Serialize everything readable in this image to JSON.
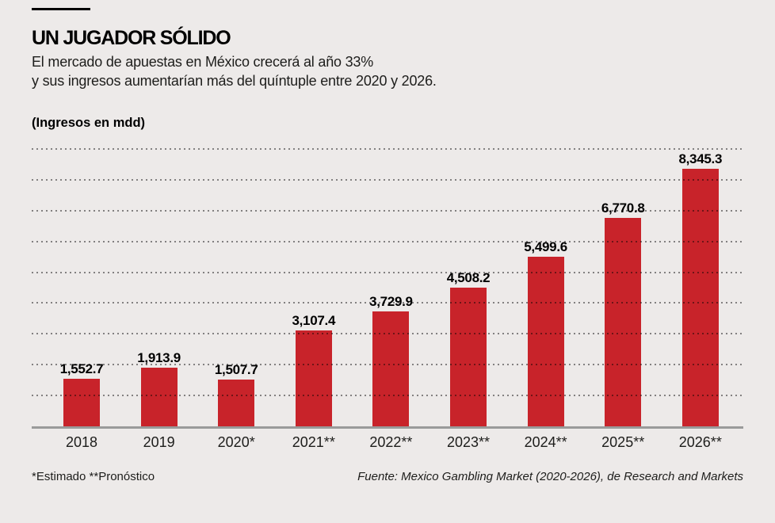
{
  "page": {
    "background_color": "#EDEAE9",
    "accent_color": "#C8232A",
    "title": "UN JUGADOR SÓLIDO",
    "subtitle_line1": "El mercado de apuestas en México crecerá al año 33%",
    "subtitle_line2": "y sus ingresos aumentarían más del quíntuple entre 2020 y 2026.",
    "unit_label": "(Ingresos en mdd)",
    "footnote": "*Estimado **Pronóstico",
    "source": "Fuente: Mexico Gambling Market (2020-2026), de Research and Markets"
  },
  "chart_data": {
    "type": "bar",
    "title": "UN JUGADOR SÓLIDO",
    "subtitle": "El mercado de apuestas en México crecerá al año 33% y sus ingresos aumentarían más del quíntuple entre 2020 y 2026.",
    "ylabel": "Ingresos en mdd",
    "categories": [
      "2018",
      "2019",
      "2020*",
      "2021**",
      "2022**",
      "2023**",
      "2024**",
      "2025**",
      "2026**"
    ],
    "values": [
      1552.7,
      1913.9,
      1507.7,
      3107.4,
      3729.9,
      4508.2,
      5499.6,
      6770.8,
      8345.3
    ],
    "value_labels": [
      "1,552.7",
      "1,913.9",
      "1,507.7",
      "3,107.4",
      "3,729.9",
      "4,508.2",
      "5,499.6",
      "6,770.8",
      "8,345.3"
    ],
    "ylim": [
      0,
      9000
    ],
    "gridline_step": 1000,
    "grid": "dotted-horizontal",
    "legend": "none",
    "bar_color": "#C8232A",
    "footnote": "*Estimado **Pronóstico",
    "source": "Fuente: Mexico Gambling Market (2020-2026), de Research and Markets"
  }
}
